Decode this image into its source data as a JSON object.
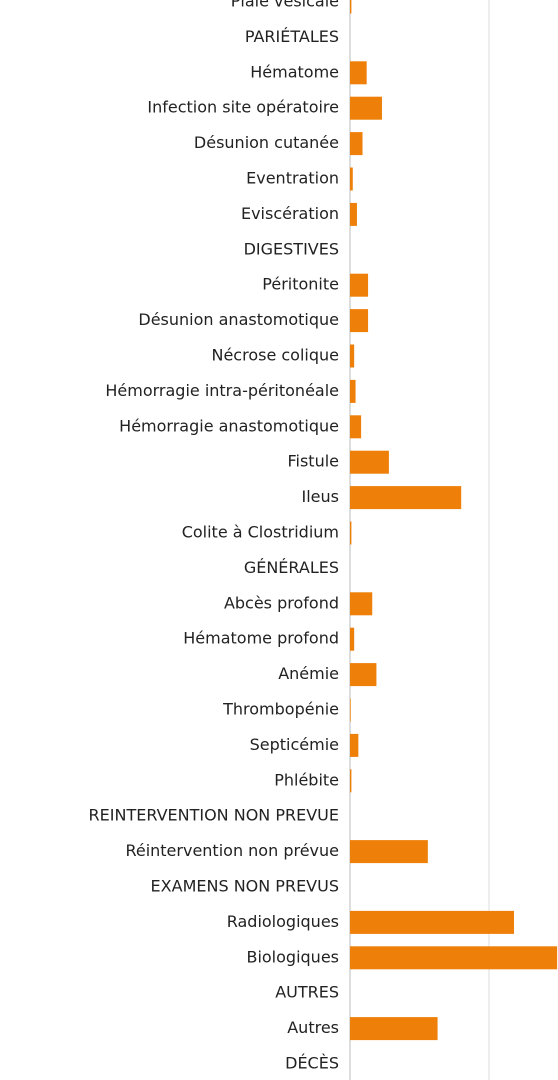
{
  "chart_data": {
    "type": "barh",
    "categories": [
      "Plaie vésicale",
      "PARIÉTALES",
      "Hématome",
      "Infection site opératoire",
      "Désunion cutanée",
      "Eventration",
      "Eviscération",
      "DIGESTIVES",
      "Péritonite",
      "Désunion anastomotique",
      "Nécrose colique",
      "Hémorragie intra-péritonéale",
      "Hémorragie anastomotique",
      "Fistule",
      "Ileus",
      "Colite à Clostridium",
      "GÉNÉRALES",
      "Abcès profond",
      "Hématome profond",
      "Anémie",
      "Thrombopénie",
      "Septicémie",
      "Phlébite",
      "REINTERVENTION NON PREVUE",
      "Réintervention non prévue",
      "EXAMENS NON PREVUS",
      "Radiologiques",
      "Biologiques",
      "AUTRES",
      "Autres",
      "DÉCÈS"
    ],
    "values": [
      0.1,
      null,
      1.2,
      2.3,
      0.9,
      0.2,
      0.5,
      null,
      1.3,
      1.3,
      0.3,
      0.4,
      0.8,
      2.8,
      8.0,
      0.1,
      null,
      1.6,
      0.3,
      1.9,
      0.05,
      0.6,
      0.1,
      null,
      5.6,
      null,
      11.8,
      14.9,
      null,
      6.3,
      null
    ],
    "color": "#ee8009",
    "xlim": [
      0,
      15
    ],
    "xticks": [
      0,
      10
    ],
    "grid": true
  }
}
